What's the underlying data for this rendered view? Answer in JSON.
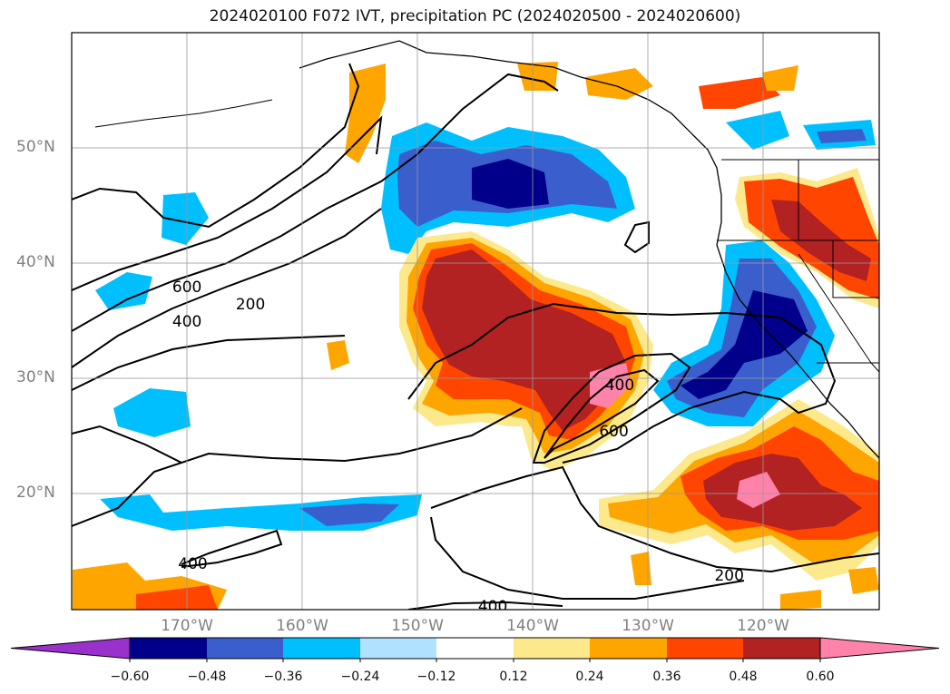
{
  "title": "2024020100 F072 IVT, precipitation PC (2024020500 - 2024020600)",
  "map": {
    "type": "filled-contour-map",
    "region": "North-East Pacific",
    "lon_range": [
      -181,
      -111
    ],
    "lat_range": [
      10,
      60
    ],
    "grid": true,
    "lat_ticks": [
      {
        "value": 20,
        "label": "20°N"
      },
      {
        "value": 30,
        "label": "30°N"
      },
      {
        "value": 40,
        "label": "40°N"
      },
      {
        "value": 50,
        "label": "50°N"
      }
    ],
    "lon_ticks": [
      {
        "value": -170,
        "label": "170°W"
      },
      {
        "value": -160,
        "label": "160°W"
      },
      {
        "value": -150,
        "label": "150°W"
      },
      {
        "value": -140,
        "label": "140°W"
      },
      {
        "value": -130,
        "label": "130°W"
      },
      {
        "value": -120,
        "label": "120°W"
      }
    ],
    "ivt_contour_labels": [
      {
        "text": "600",
        "lon": -171,
        "lat": 38
      },
      {
        "text": "400",
        "lon": -171,
        "lat": 35
      },
      {
        "text": "200",
        "lon": -165.5,
        "lat": 36.5
      },
      {
        "text": "400",
        "lon": -133.5,
        "lat": 29.5
      },
      {
        "text": "600",
        "lon": -134,
        "lat": 25.5
      },
      {
        "text": "400",
        "lon": -170.5,
        "lat": 14
      },
      {
        "text": "200",
        "lon": -124,
        "lat": 13
      },
      {
        "text": "400",
        "lon": -144.5,
        "lat": 10.3
      }
    ]
  },
  "colorbar": {
    "levels": [
      "−0.60",
      "−0.48",
      "−0.36",
      "−0.24",
      "−0.12",
      "0.12",
      "0.24",
      "0.36",
      "0.48",
      "0.60"
    ],
    "colors": [
      "#9932cc",
      "#00008b",
      "#3a5fcd",
      "#00bfff",
      "#b0e2ff",
      "#ffffff",
      "#fce98c",
      "#ffa500",
      "#ff4500",
      "#b22222",
      "#ff82ab"
    ]
  }
}
